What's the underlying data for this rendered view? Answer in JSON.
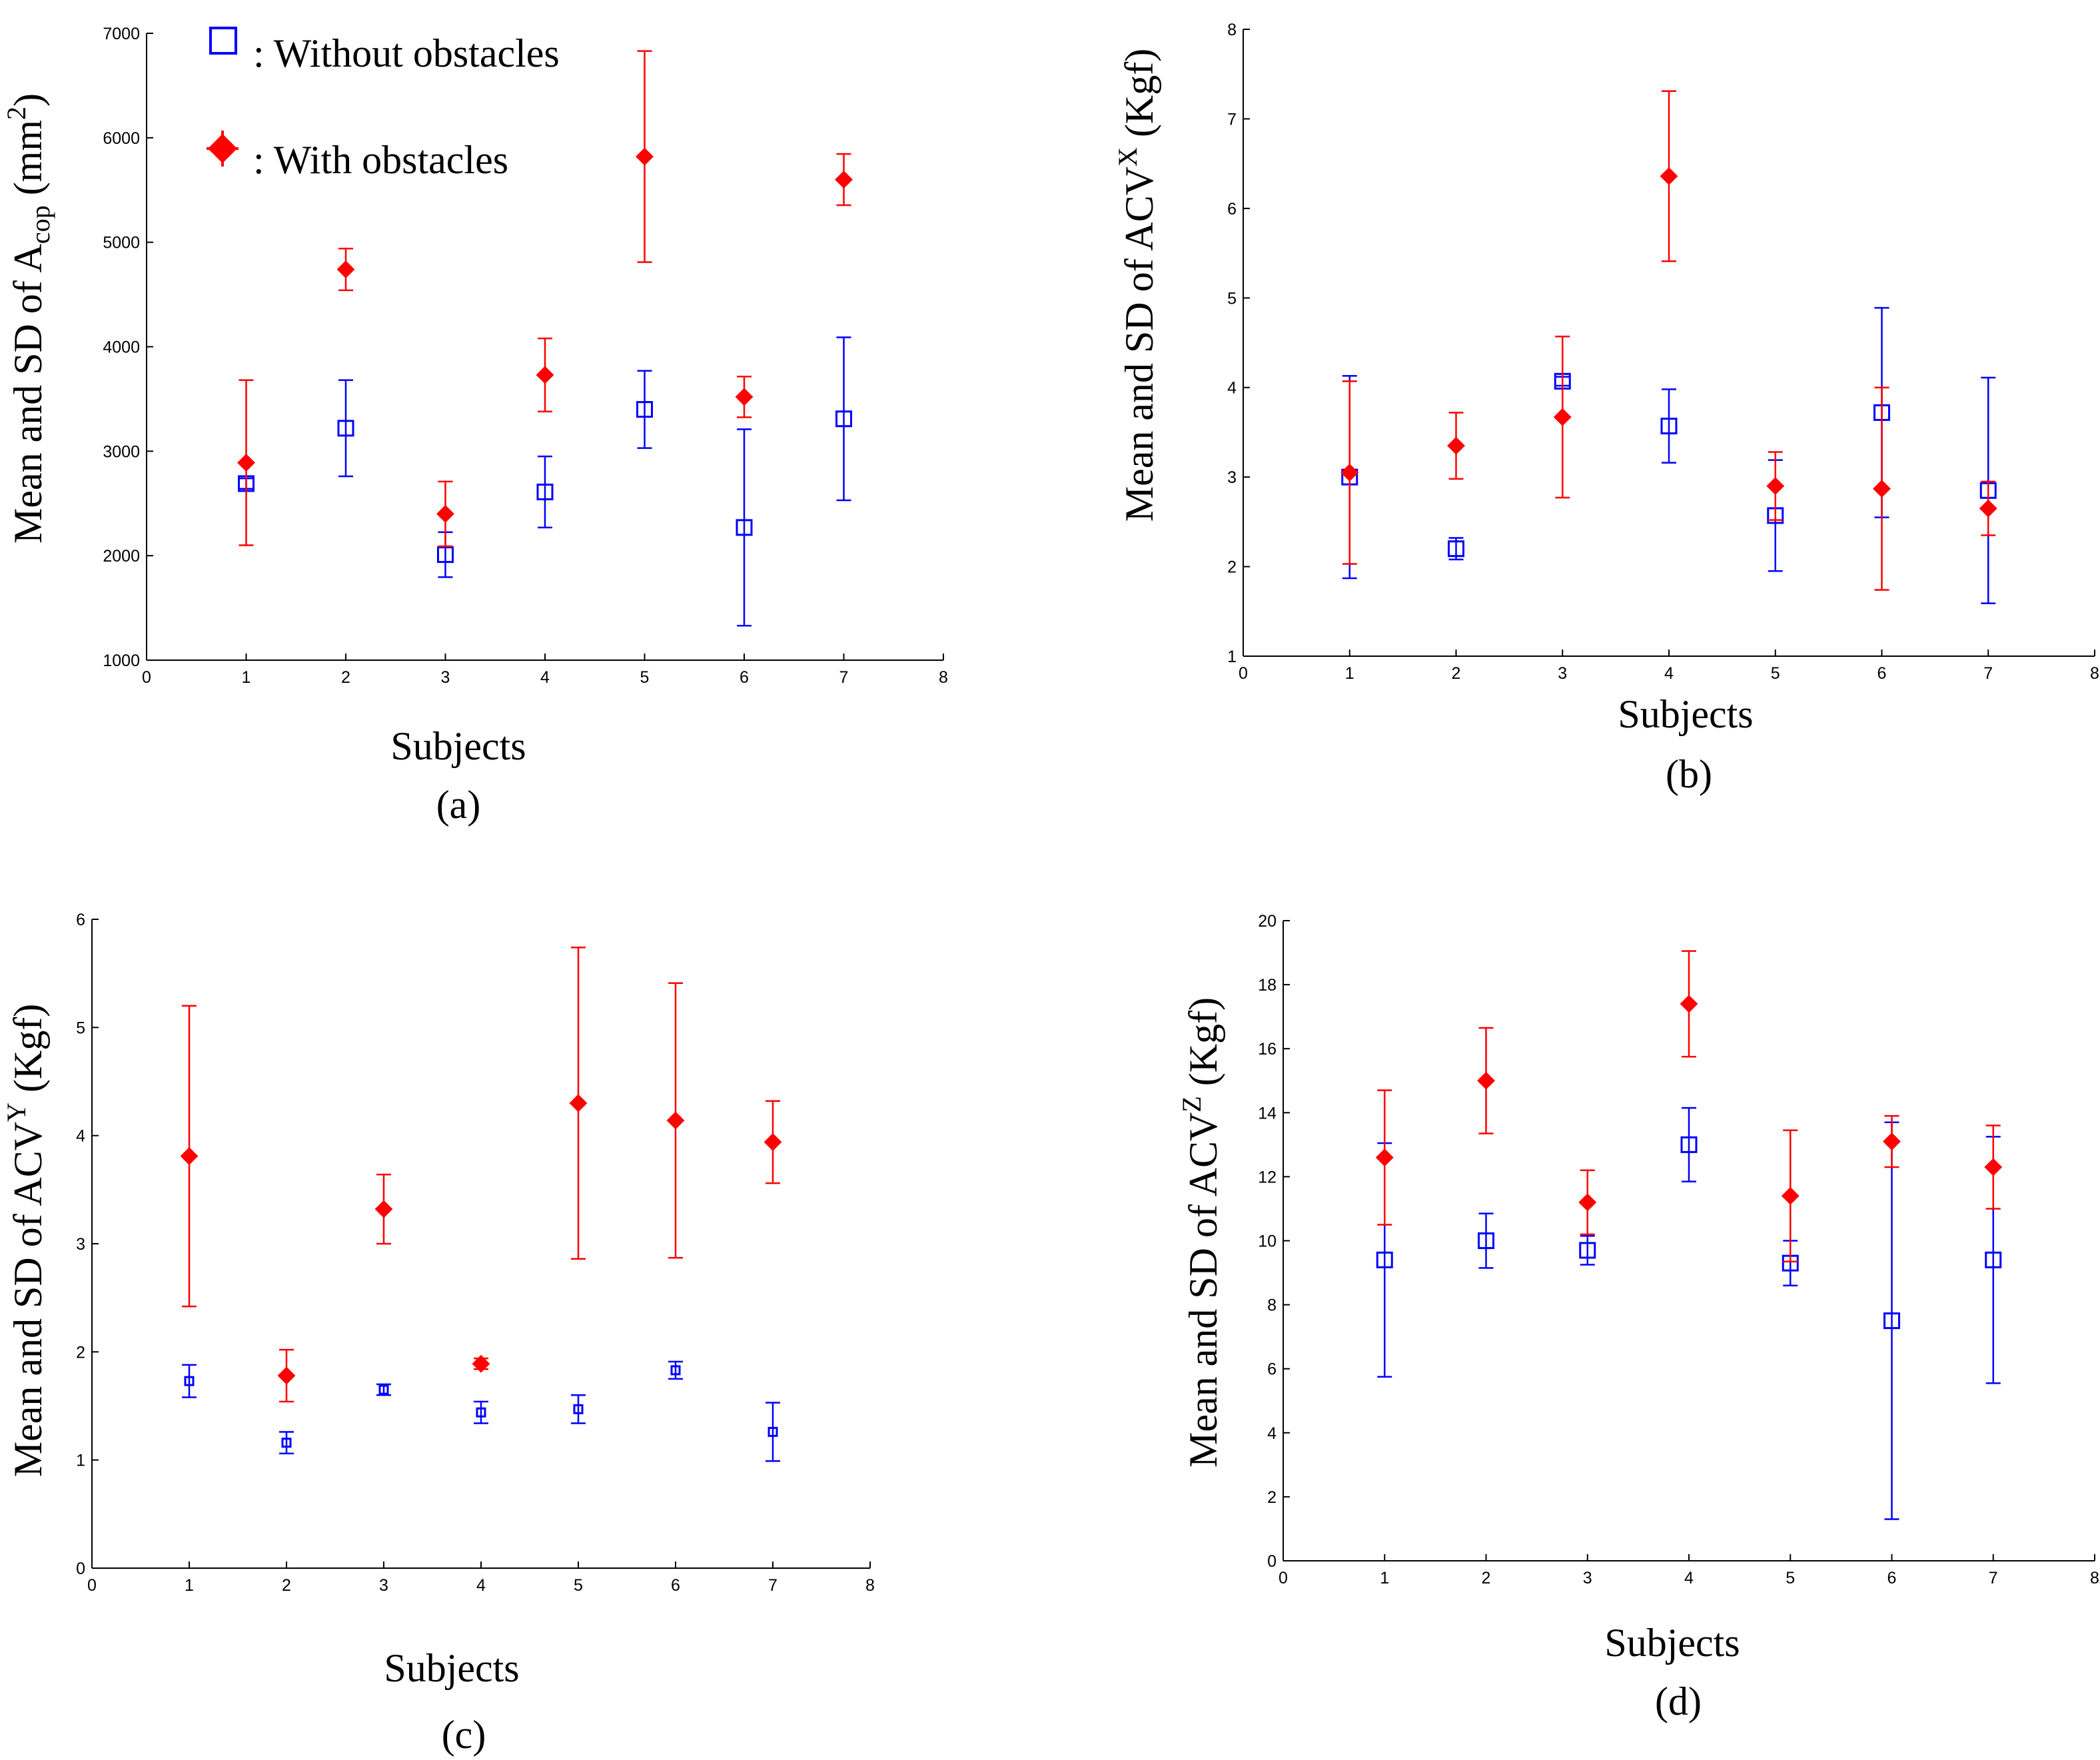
{
  "legend": {
    "without_label": ": Without obstacles",
    "with_label": ": With obstacles"
  },
  "colors": {
    "without": "#0000ff",
    "with": "#ff0000"
  },
  "chart_data": [
    {
      "type": "scatter",
      "caption": "(a)",
      "xlabel": "Subjects",
      "ylabel": {
        "prefix": "Mean and SD of A",
        "sub": "cop",
        "mid": " (mm",
        "sup": "2",
        "suffix": ")"
      },
      "xlim": [
        0,
        8
      ],
      "ylim": [
        1000,
        7000
      ],
      "xticks": [
        0,
        1,
        2,
        3,
        4,
        5,
        6,
        7,
        8
      ],
      "yticks": [
        1000,
        2000,
        3000,
        4000,
        5000,
        6000,
        7000
      ],
      "series": [
        {
          "name": "Without obstacles",
          "marker": "square",
          "x": [
            1,
            2,
            3,
            4,
            5,
            6,
            7
          ],
          "y": [
            2690,
            3220,
            2010,
            2610,
            3400,
            2270,
            3310
          ],
          "err": [
            50,
            460,
            215,
            340,
            370,
            940,
            780
          ]
        },
        {
          "name": "With obstacles",
          "marker": "diamond",
          "x": [
            1,
            2,
            3,
            4,
            5,
            6,
            7
          ],
          "y": [
            2890,
            4740,
            2400,
            3730,
            5820,
            3520,
            5600
          ],
          "err": [
            790,
            200,
            310,
            350,
            1010,
            195,
            245
          ]
        }
      ]
    },
    {
      "type": "scatter",
      "caption": "(b)",
      "xlabel": "Subjects",
      "ylabel": {
        "prefix": "Mean and SD of ACV",
        "sub": "",
        "mid": "",
        "sup": "X",
        "suffix": " (Kgf)"
      },
      "xlim": [
        0,
        8
      ],
      "ylim": [
        1,
        8
      ],
      "xticks": [
        0,
        1,
        2,
        3,
        4,
        5,
        6,
        7,
        8
      ],
      "yticks": [
        1,
        2,
        3,
        4,
        5,
        6,
        7,
        8
      ],
      "series": [
        {
          "name": "Without obstacles",
          "marker": "square",
          "x": [
            1,
            2,
            3,
            4,
            5,
            6,
            7
          ],
          "y": [
            3.0,
            2.2,
            4.07,
            3.57,
            2.57,
            3.72,
            2.85
          ],
          "err": [
            1.13,
            0.12,
            0.05,
            0.41,
            0.62,
            1.17,
            1.26
          ]
        },
        {
          "name": "With obstacles",
          "marker": "diamond",
          "x": [
            1,
            2,
            3,
            4,
            5,
            6,
            7
          ],
          "y": [
            3.05,
            3.35,
            3.67,
            6.36,
            2.9,
            2.87,
            2.65
          ],
          "err": [
            1.02,
            0.37,
            0.9,
            0.95,
            0.38,
            1.13,
            0.3
          ]
        }
      ]
    },
    {
      "type": "scatter",
      "caption": "(c)",
      "xlabel": "Subjects",
      "ylabel": {
        "prefix": "Mean and SD of ACV",
        "sub": "",
        "mid": "",
        "sup": "Y",
        "suffix": " (Kgf)"
      },
      "xlim": [
        0,
        8
      ],
      "ylim": [
        0,
        6
      ],
      "xticks": [
        0,
        1,
        2,
        3,
        4,
        5,
        6,
        7,
        8
      ],
      "yticks": [
        0,
        1,
        2,
        3,
        4,
        5,
        6
      ],
      "series": [
        {
          "name": "Without obstacles",
          "marker": "square",
          "x": [
            1,
            2,
            3,
            4,
            5,
            6,
            7
          ],
          "y": [
            1.73,
            1.16,
            1.65,
            1.44,
            1.47,
            1.83,
            1.26
          ],
          "err": [
            0.15,
            0.1,
            0.05,
            0.1,
            0.13,
            0.08,
            0.27
          ]
        },
        {
          "name": "With obstacles",
          "marker": "diamond",
          "x": [
            1,
            2,
            3,
            4,
            5,
            6,
            7
          ],
          "y": [
            3.81,
            1.78,
            3.32,
            1.89,
            4.3,
            4.14,
            3.94
          ],
          "err": [
            1.39,
            0.24,
            0.32,
            0.05,
            1.44,
            1.27,
            0.38
          ]
        }
      ]
    },
    {
      "type": "scatter",
      "caption": "(d)",
      "xlabel": "Subjects",
      "ylabel": {
        "prefix": "Mean and SD of ACV",
        "sub": "",
        "mid": "",
        "sup": "Z",
        "suffix": " (Kgf)"
      },
      "xlim": [
        0,
        8
      ],
      "ylim": [
        0,
        20
      ],
      "xticks": [
        0,
        1,
        2,
        3,
        4,
        5,
        6,
        7,
        8
      ],
      "yticks": [
        0,
        2,
        4,
        6,
        8,
        10,
        12,
        14,
        16,
        18,
        20
      ],
      "series": [
        {
          "name": "Without obstacles",
          "marker": "square",
          "x": [
            1,
            2,
            3,
            4,
            5,
            6,
            7
          ],
          "y": [
            9.4,
            10.0,
            9.7,
            13.0,
            9.3,
            7.5,
            9.4
          ],
          "err": [
            3.65,
            0.85,
            0.45,
            1.15,
            0.7,
            6.2,
            3.85
          ]
        },
        {
          "name": "With obstacles",
          "marker": "diamond",
          "x": [
            1,
            2,
            3,
            4,
            5,
            6,
            7
          ],
          "y": [
            12.6,
            15.0,
            11.2,
            17.4,
            11.4,
            13.1,
            12.3
          ],
          "err": [
            2.1,
            1.65,
            1.0,
            1.65,
            2.05,
            0.8,
            1.3
          ]
        }
      ]
    }
  ]
}
